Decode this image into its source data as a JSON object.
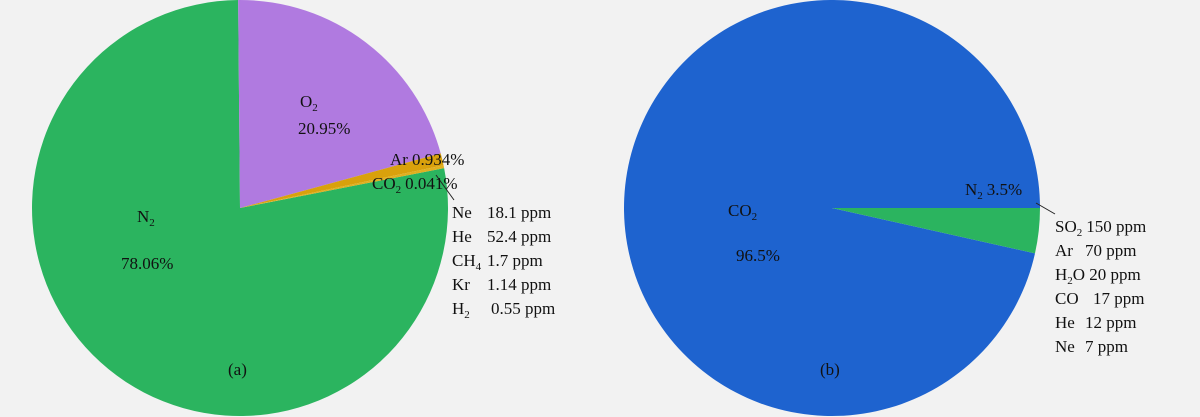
{
  "chart_data": [
    {
      "type": "pie",
      "panel_label": "(a)",
      "slices": [
        {
          "label": "N",
          "sub": "2",
          "value_text": "78.06%",
          "value": 78.06,
          "color": "#2bb45f"
        },
        {
          "label": "O",
          "sub": "2",
          "value_text": "20.95%",
          "value": 20.95,
          "color": "#b07ae0"
        },
        {
          "label": "Ar",
          "sub": "",
          "value_text": "0.934%",
          "value": 0.934,
          "color": "#d9a10c"
        },
        {
          "label": "CO",
          "sub": "2",
          "value_text": "0.041%",
          "value": 0.041,
          "color": "#e0b020"
        }
      ],
      "trace_gases": [
        {
          "name": "Ne",
          "sub": "",
          "value": "18.1 ppm"
        },
        {
          "name": "He",
          "sub": "",
          "value": "52.4 ppm"
        },
        {
          "name": "CH",
          "sub": "4",
          "value": "1.7 ppm"
        },
        {
          "name": "Kr",
          "sub": "",
          "value": "1.14 ppm"
        },
        {
          "name": "H",
          "sub": "2",
          "value": "0.55 ppm"
        }
      ]
    },
    {
      "type": "pie",
      "panel_label": "(b)",
      "slices": [
        {
          "label": "CO",
          "sub": "2",
          "value_text": "96.5%",
          "value": 96.5,
          "color": "#1e63cf"
        },
        {
          "label": "N",
          "sub": "2",
          "value_text": "3.5%",
          "value": 3.5,
          "color": "#2bb45f"
        }
      ],
      "trace_gases": [
        {
          "name": "SO",
          "sub": "2",
          "value": "150 ppm"
        },
        {
          "name": "Ar",
          "sub": "",
          "value": "70 ppm"
        },
        {
          "name": "H",
          "sub": "2",
          "value": "O 20 ppm"
        },
        {
          "name": "CO",
          "sub": "",
          "value": "17 ppm"
        },
        {
          "name": "He",
          "sub": "",
          "value": "12 ppm"
        },
        {
          "name": "Ne",
          "sub": "",
          "value": "7 ppm"
        }
      ]
    }
  ]
}
